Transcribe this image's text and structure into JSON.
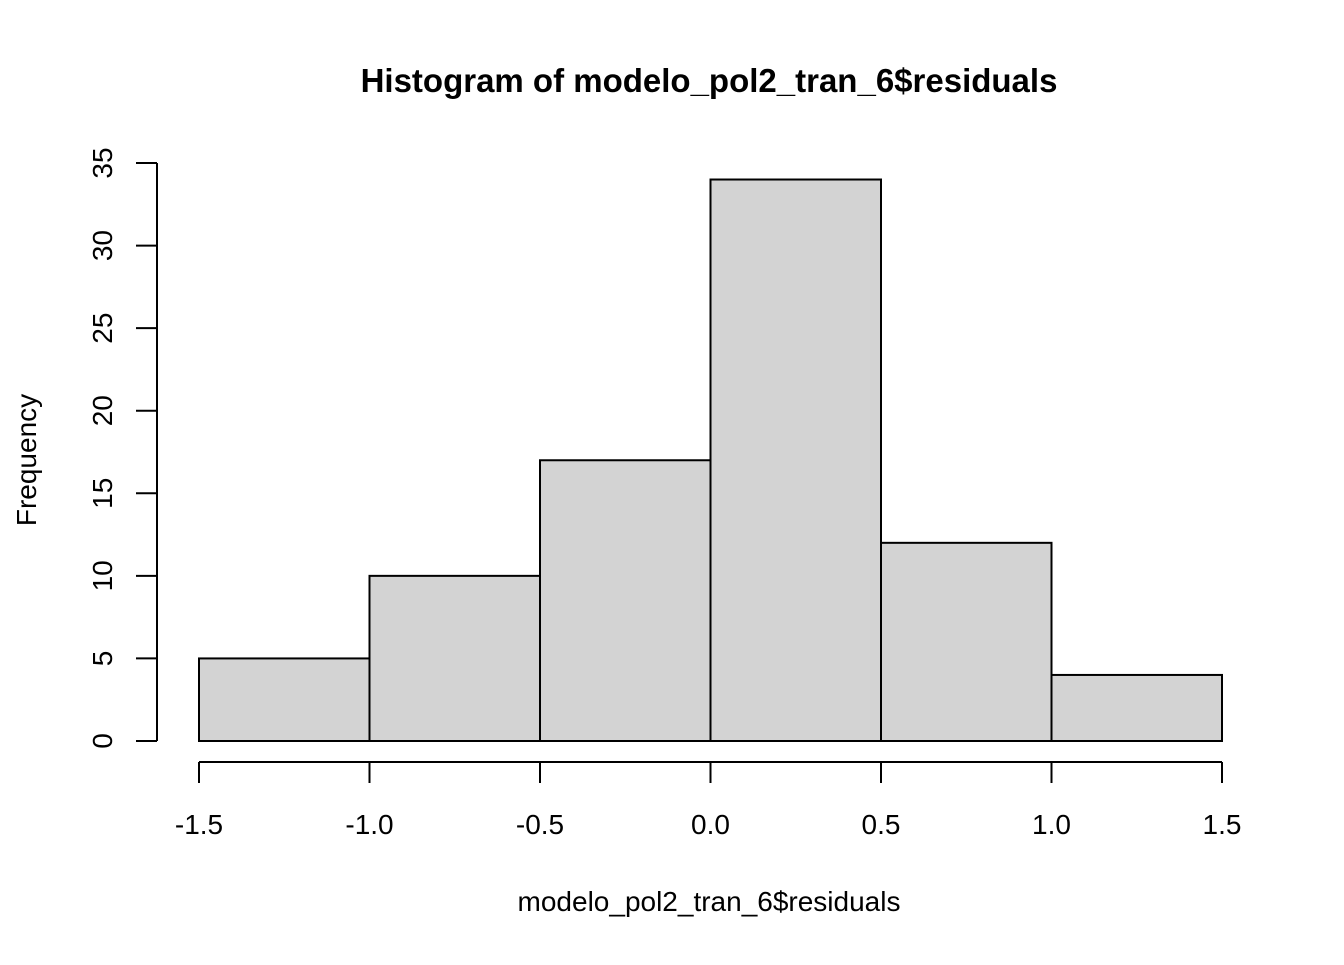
{
  "chart_data": {
    "type": "bar",
    "title": "Histogram of modelo_pol2_tran_6$residuals",
    "xlabel": "modelo_pol2_tran_6$residuals",
    "ylabel": "Frequency",
    "bins": [
      {
        "from": -1.5,
        "to": -1.0,
        "count": 5
      },
      {
        "from": -1.0,
        "to": -0.5,
        "count": 10
      },
      {
        "from": -0.5,
        "to": 0.0,
        "count": 17
      },
      {
        "from": 0.0,
        "to": 0.5,
        "count": 34
      },
      {
        "from": 0.5,
        "to": 1.0,
        "count": 12
      },
      {
        "from": 1.0,
        "to": 1.5,
        "count": 4
      }
    ],
    "xlim": [
      -1.5,
      1.5
    ],
    "ylim": [
      0,
      35
    ],
    "x_ticks": [
      -1.5,
      -1.0,
      -0.5,
      0.0,
      0.5,
      1.0,
      1.5
    ],
    "x_tick_labels": [
      "-1.5",
      "-1.0",
      "-0.5",
      "0.0",
      "0.5",
      "1.0",
      "1.5"
    ],
    "y_ticks": [
      0,
      5,
      10,
      15,
      20,
      25,
      30,
      35
    ],
    "y_tick_labels": [
      "0",
      "5",
      "10",
      "15",
      "20",
      "25",
      "30",
      "35"
    ],
    "grid": false,
    "bar_fill": "#d3d3d3",
    "bar_stroke": "#000000"
  }
}
